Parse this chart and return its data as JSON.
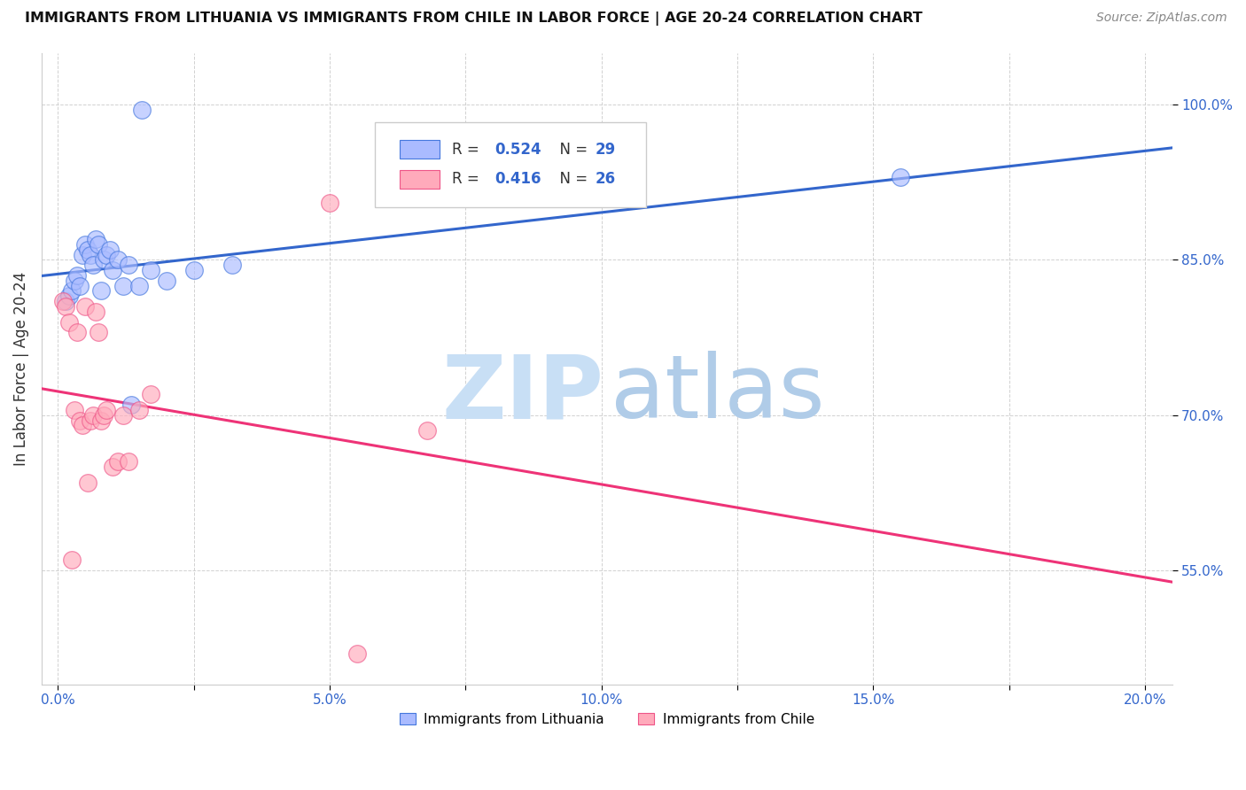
{
  "title": "IMMIGRANTS FROM LITHUANIA VS IMMIGRANTS FROM CHILE IN LABOR FORCE | AGE 20-24 CORRELATION CHART",
  "source": "Source: ZipAtlas.com",
  "ylabel": "In Labor Force | Age 20-24",
  "xlim_min": -0.3,
  "xlim_max": 20.5,
  "ylim_min": 44.0,
  "ylim_max": 105.0,
  "xtick_vals": [
    0.0,
    2.5,
    5.0,
    7.5,
    10.0,
    12.5,
    15.0,
    17.5,
    20.0
  ],
  "xtick_labels": [
    "0.0%",
    "",
    "5.0%",
    "",
    "10.0%",
    "",
    "15.0%",
    "",
    "20.0%"
  ],
  "ytick_vals": [
    55.0,
    70.0,
    85.0,
    100.0
  ],
  "ytick_labels": [
    "55.0%",
    "70.0%",
    "85.0%",
    "100.0%"
  ],
  "legend_r1": "0.524",
  "legend_n1": "29",
  "legend_r2": "0.416",
  "legend_n2": "26",
  "color_lith_fill": "#aabbff",
  "color_lith_edge": "#4477dd",
  "color_chile_fill": "#ffaabb",
  "color_chile_edge": "#ee5588",
  "color_line_lith": "#3366cc",
  "color_line_chile": "#ee3377",
  "watermark_zip_color": "#c8dff5",
  "watermark_atlas_color": "#b0cce8",
  "legend_r_color": "#3366cc",
  "tick_color": "#3366cc",
  "grid_color": "#cccccc",
  "lithuania_x": [
    0.15,
    0.2,
    0.25,
    0.3,
    0.35,
    0.4,
    0.45,
    0.5,
    0.55,
    0.6,
    0.65,
    0.7,
    0.75,
    0.8,
    0.85,
    0.9,
    0.95,
    1.0,
    1.1,
    1.2,
    1.3,
    1.5,
    1.7,
    2.0,
    2.5,
    3.2,
    1.35,
    15.5,
    1.55
  ],
  "lithuania_y": [
    81.0,
    81.5,
    82.0,
    83.0,
    83.5,
    82.5,
    85.5,
    86.5,
    86.0,
    85.5,
    84.5,
    87.0,
    86.5,
    82.0,
    85.0,
    85.5,
    86.0,
    84.0,
    85.0,
    82.5,
    84.5,
    82.5,
    84.0,
    83.0,
    84.0,
    84.5,
    71.0,
    93.0,
    99.5
  ],
  "chile_x": [
    0.1,
    0.15,
    0.2,
    0.25,
    0.3,
    0.35,
    0.4,
    0.45,
    0.5,
    0.55,
    0.6,
    0.65,
    0.7,
    0.75,
    0.8,
    0.85,
    0.9,
    1.0,
    1.1,
    1.2,
    1.3,
    1.5,
    1.7,
    5.0,
    6.8,
    5.5
  ],
  "chile_y": [
    81.0,
    80.5,
    79.0,
    56.0,
    70.5,
    78.0,
    69.5,
    69.0,
    80.5,
    63.5,
    69.5,
    70.0,
    80.0,
    78.0,
    69.5,
    70.0,
    70.5,
    65.0,
    65.5,
    70.0,
    65.5,
    70.5,
    72.0,
    90.5,
    68.5,
    47.0
  ]
}
